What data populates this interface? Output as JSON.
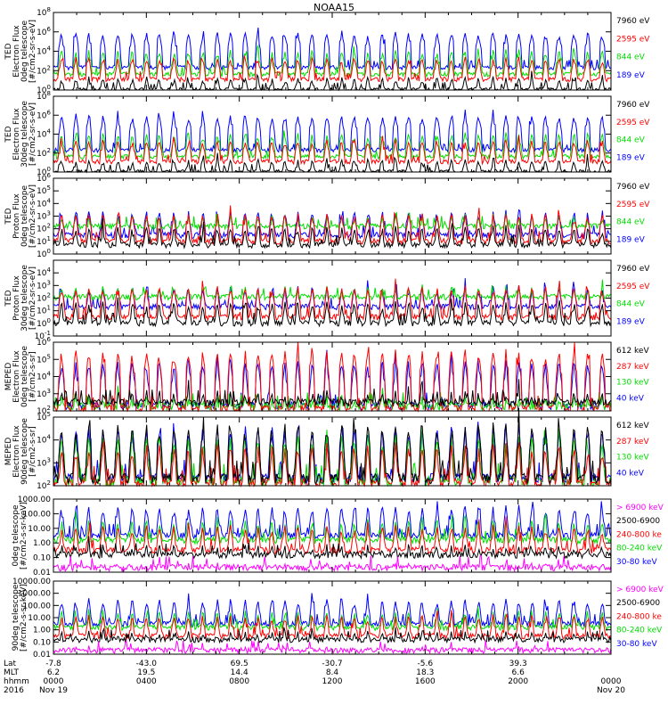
{
  "figure": {
    "title": "NOAA15",
    "footer": {
      "row_labels": [
        "Lat",
        "MLT",
        "hhmm",
        "2016"
      ],
      "ticks": [
        {
          "lat": "-7.8",
          "mlt": "6.2",
          "hhmm": "0000",
          "date": "Nov 19"
        },
        {
          "lat": "-43.0",
          "mlt": "19.5",
          "hhmm": "0400",
          "date": ""
        },
        {
          "lat": "69.5",
          "mlt": "14.4",
          "hhmm": "0800",
          "date": ""
        },
        {
          "lat": "-30.7",
          "mlt": "8.4",
          "hhmm": "1200",
          "date": ""
        },
        {
          "lat": "-5.6",
          "mlt": "18.3",
          "hhmm": "1600",
          "date": ""
        },
        {
          "lat": "39.3",
          "mlt": "6.6",
          "hhmm": "2000",
          "date": ""
        },
        {
          "lat": "",
          "mlt": "",
          "hhmm": "0000",
          "date": "Nov 20"
        }
      ]
    }
  },
  "chart_data": [
    {
      "type": "line",
      "ylabel": [
        "TED",
        "Electron Flux",
        "0deg telescope",
        "[#/cm2-sr-s-eV]"
      ],
      "ylog": true,
      "yticks": [
        "10^0",
        "10^2",
        "10^4",
        "10^6",
        "10^8"
      ],
      "ylim": [
        1,
        100000000
      ],
      "x_hours": [
        0,
        24
      ],
      "series": [
        {
          "name": "7960 eV",
          "color": "#000000",
          "base": 1,
          "peak": 30
        },
        {
          "name": "2595 eV",
          "color": "#ff0000",
          "base": 12,
          "peak": 3000
        },
        {
          "name": "844 eV",
          "color": "#00dd00",
          "base": 40,
          "peak": 15000
        },
        {
          "name": "189 eV",
          "color": "#0000ff",
          "base": 200,
          "peak": 1000000
        }
      ]
    },
    {
      "type": "line",
      "ylabel": [
        "TED",
        "Electron Flux",
        "30deg telescope",
        "[#/cm2-sr-s-eV]"
      ],
      "ylog": true,
      "yticks": [
        "10^0",
        "10^2",
        "10^4",
        "10^6",
        "10^8"
      ],
      "ylim": [
        1,
        100000000
      ],
      "x_hours": [
        0,
        24
      ],
      "series": [
        {
          "name": "7960 eV",
          "color": "#000000",
          "base": 1,
          "peak": 30
        },
        {
          "name": "2595 eV",
          "color": "#ff0000",
          "base": 12,
          "peak": 3000
        },
        {
          "name": "844 eV",
          "color": "#00dd00",
          "base": 40,
          "peak": 15000
        },
        {
          "name": "189 eV",
          "color": "#0000ff",
          "base": 200,
          "peak": 1000000
        }
      ]
    },
    {
      "type": "line",
      "ylabel": [
        "TED",
        "Proton Flux",
        "0deg telescope",
        "[#/cm2-sr-s-eV]"
      ],
      "ylog": true,
      "yticks": [
        "10^0",
        "10^1",
        "10^2",
        "10^3",
        "10^4",
        "10^5",
        "10^6"
      ],
      "ylim": [
        1,
        1000000
      ],
      "x_hours": [
        0,
        24
      ],
      "series": [
        {
          "name": "7960 eV",
          "color": "#000000",
          "base": 5,
          "peak": 200
        },
        {
          "name": "2595 eV",
          "color": "#ff0000",
          "base": 10,
          "peak": 2000
        },
        {
          "name": "844 eV",
          "color": "#00dd00",
          "base": 150,
          "peak": 1500
        },
        {
          "name": "189 eV",
          "color": "#0000ff",
          "base": 30,
          "peak": 3000
        }
      ]
    },
    {
      "type": "line",
      "ylabel": [
        "TED",
        "Proton Flux",
        "30deg telescope",
        "[#/cm2-sr-s-eV]"
      ],
      "ylog": true,
      "yticks": [
        "10^-1",
        "10^0",
        "10^1",
        "10^2",
        "10^3",
        "10^4"
      ],
      "ylim": [
        0.1,
        100000
      ],
      "x_hours": [
        0,
        24
      ],
      "series": [
        {
          "name": "7960 eV",
          "color": "#000000",
          "base": 1,
          "peak": 60
        },
        {
          "name": "2595 eV",
          "color": "#ff0000",
          "base": 3,
          "peak": 1000
        },
        {
          "name": "844 eV",
          "color": "#00dd00",
          "base": 120,
          "peak": 1000
        },
        {
          "name": "189 eV",
          "color": "#0000ff",
          "base": 20,
          "peak": 1000
        }
      ]
    },
    {
      "type": "line",
      "ylabel": [
        "MEPED",
        "Electron Flux",
        "0deg telescope",
        "[#/cm2-s-sr]"
      ],
      "ylog": true,
      "yticks": [
        "10^2",
        "10^3",
        "10^4",
        "10^5",
        "10^6"
      ],
      "ylim": [
        100,
        1000000
      ],
      "x_hours": [
        0,
        24
      ],
      "series": [
        {
          "name": "612 keV",
          "color": "#000000",
          "base": 300,
          "peak": 2000
        },
        {
          "name": "287 keV",
          "color": "#ff0000",
          "base": 120,
          "peak": 400000
        },
        {
          "name": "130 keV",
          "color": "#00dd00",
          "base": 180,
          "peak": 1000
        },
        {
          "name": "40 keV",
          "color": "#0000ff",
          "base": 200,
          "peak": 100000
        }
      ]
    },
    {
      "type": "line",
      "ylabel": [
        "MEPED",
        "Electron Flux",
        "90deg telescope",
        "[#/cm2-s-sr]"
      ],
      "ylog": true,
      "yticks": [
        "10^2",
        "10^3",
        "10^4",
        "10^5"
      ],
      "ylim": [
        100,
        100000
      ],
      "x_hours": [
        0,
        24
      ],
      "series": [
        {
          "name": "612 keV",
          "color": "#000000",
          "base": 200,
          "peak": 60000
        },
        {
          "name": "287 keV",
          "color": "#ff0000",
          "base": 120,
          "peak": 8000
        },
        {
          "name": "130 keV",
          "color": "#00dd00",
          "base": 150,
          "peak": 20000
        },
        {
          "name": "40 keV",
          "color": "#0000ff",
          "base": 200,
          "peak": 50000
        }
      ]
    },
    {
      "type": "line",
      "ylabel": [
        "0deg telescope",
        "[#/cm2-s-sr-keV]"
      ],
      "ylog": true,
      "yticks": [
        "0.01",
        "0.10",
        "1.00",
        "10.00",
        "100.00",
        "1000.00"
      ],
      "ylim": [
        0.01,
        1000
      ],
      "x_hours": [
        0,
        24
      ],
      "series": [
        {
          "name": "> 6900 keV",
          "color": "#ff00ff",
          "base": 0.02,
          "peak": 0.05
        },
        {
          "name": "2500-6900",
          "color": "#000000",
          "base": 0.15,
          "peak": 1
        },
        {
          "name": "240-800 ke",
          "color": "#ff0000",
          "base": 0.3,
          "peak": 20
        },
        {
          "name": "80-240 keV",
          "color": "#00dd00",
          "base": 1.5,
          "peak": 50
        },
        {
          "name": "30-80 keV",
          "color": "#0000ff",
          "base": 3,
          "peak": 400
        }
      ]
    },
    {
      "type": "line",
      "ylabel": [
        "90deg telescope",
        "[#/cm2-s-sr-keV]"
      ],
      "ylog": true,
      "yticks": [
        "0.01",
        "0.10",
        "1.00",
        "10.00",
        "100.00",
        "1000.00",
        "10000.00"
      ],
      "ylim": [
        0.01,
        10000
      ],
      "x_hours": [
        0,
        24
      ],
      "series": [
        {
          "name": "> 6900 keV",
          "color": "#ff00ff",
          "base": 0.02,
          "peak": 0.05
        },
        {
          "name": "2500-6900",
          "color": "#000000",
          "base": 0.15,
          "peak": 1
        },
        {
          "name": "240-800 ke",
          "color": "#ff0000",
          "base": 0.3,
          "peak": 20
        },
        {
          "name": "80-240 keV",
          "color": "#00dd00",
          "base": 1.5,
          "peak": 50
        },
        {
          "name": "30-80 keV",
          "color": "#0000ff",
          "base": 3,
          "peak": 400
        }
      ]
    }
  ]
}
